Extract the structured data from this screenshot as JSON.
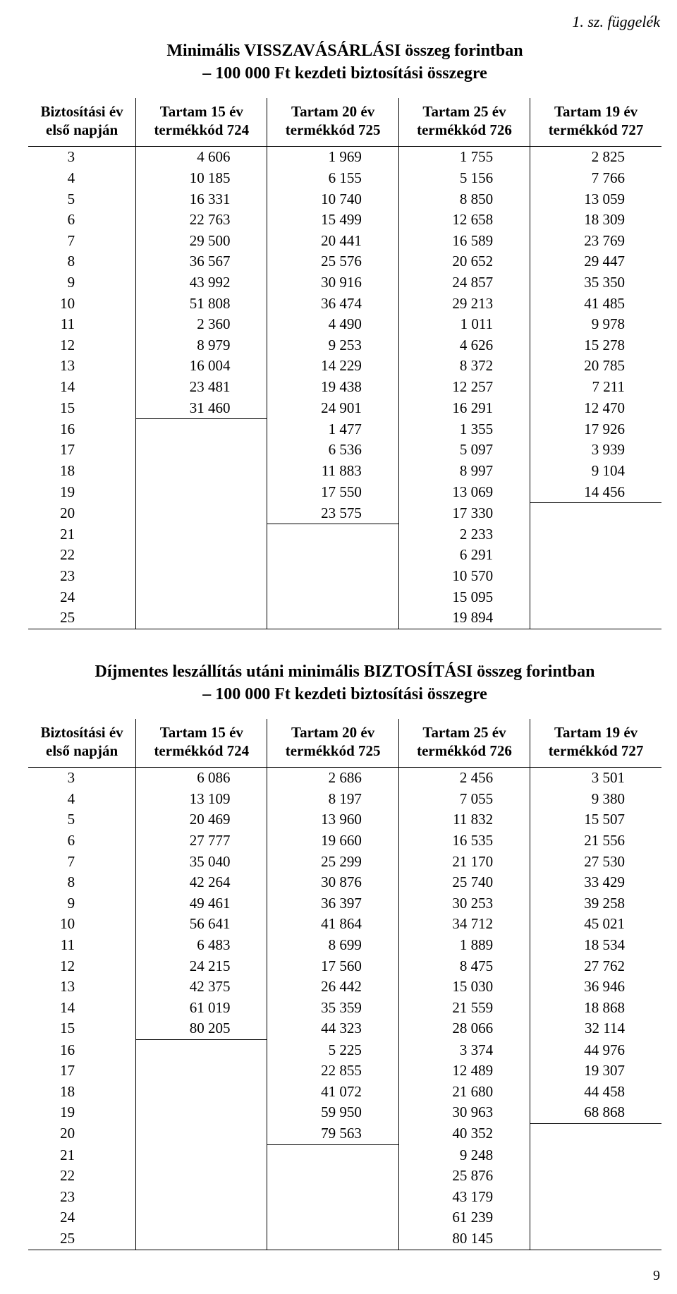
{
  "appendix_label": "1. sz. függelék",
  "page_number": "9",
  "tables": [
    {
      "title_line1": "Minimális VISSZAVÁSÁRLÁSI összeg forintban",
      "title_line2": "– 100 000 Ft kezdeti biztosítási összegre",
      "headers": [
        [
          "Biztosítási év",
          "első napján"
        ],
        [
          "Tartam 15 év",
          "termékkód 724"
        ],
        [
          "Tartam 20 év",
          "termékkód 725"
        ],
        [
          "Tartam 25 év",
          "termékkód 726"
        ],
        [
          "Tartam 19 év",
          "termékkód 727"
        ]
      ],
      "years": [
        3,
        4,
        5,
        6,
        7,
        8,
        9,
        10,
        11,
        12,
        13,
        14,
        15,
        16,
        17,
        18,
        19,
        20,
        21,
        22,
        23,
        24,
        25
      ],
      "col15": [
        "4 606",
        "10 185",
        "16 331",
        "22 763",
        "29 500",
        "36 567",
        "43 992",
        "51 808",
        "2 360",
        "8 979",
        "16 004",
        "23 481",
        "31 460"
      ],
      "col20": [
        "1 969",
        "6 155",
        "10 740",
        "15 499",
        "20 441",
        "25 576",
        "30 916",
        "36 474",
        "4 490",
        "9 253",
        "14 229",
        "19 438",
        "24 901",
        "1 477",
        "6 536",
        "11 883",
        "17 550",
        "23 575"
      ],
      "col25": [
        "1 755",
        "5 156",
        "8 850",
        "12 658",
        "16 589",
        "20 652",
        "24 857",
        "29 213",
        "1 011",
        "4 626",
        "8 372",
        "12 257",
        "16 291",
        "1 355",
        "5 097",
        "8 997",
        "13 069",
        "17 330",
        "2 233",
        "6 291",
        "10 570",
        "15 095",
        "19 894"
      ],
      "col19": [
        "2 825",
        "7 766",
        "13 059",
        "18 309",
        "23 769",
        "29 447",
        "35 350",
        "41 485",
        "9 978",
        "15 278",
        "20 785",
        "7 211",
        "12 470",
        "17 926",
        "3 939",
        "9 104",
        "14 456"
      ]
    },
    {
      "title_line1": "Díjmentes leszállítás utáni minimális BIZTOSÍTÁSI összeg forintban",
      "title_line2": "– 100 000 Ft kezdeti biztosítási összegre",
      "headers": [
        [
          "Biztosítási év",
          "első napján"
        ],
        [
          "Tartam 15 év",
          "termékkód 724"
        ],
        [
          "Tartam 20 év",
          "termékkód 725"
        ],
        [
          "Tartam 25 év",
          "termékkód 726"
        ],
        [
          "Tartam 19 év",
          "termékkód 727"
        ]
      ],
      "years": [
        3,
        4,
        5,
        6,
        7,
        8,
        9,
        10,
        11,
        12,
        13,
        14,
        15,
        16,
        17,
        18,
        19,
        20,
        21,
        22,
        23,
        24,
        25
      ],
      "col15": [
        "6 086",
        "13 109",
        "20 469",
        "27 777",
        "35 040",
        "42 264",
        "49 461",
        "56 641",
        "6 483",
        "24 215",
        "42 375",
        "61 019",
        "80 205"
      ],
      "col20": [
        "2 686",
        "8 197",
        "13 960",
        "19 660",
        "25 299",
        "30 876",
        "36 397",
        "41 864",
        "8 699",
        "17 560",
        "26 442",
        "35 359",
        "44 323",
        "5 225",
        "22 855",
        "41 072",
        "59 950",
        "79 563"
      ],
      "col25": [
        "2 456",
        "7 055",
        "11 832",
        "16 535",
        "21 170",
        "25 740",
        "30 253",
        "34 712",
        "1 889",
        "8 475",
        "15 030",
        "21 559",
        "28 066",
        "3 374",
        "12 489",
        "21 680",
        "30 963",
        "40 352",
        "9 248",
        "25 876",
        "43 179",
        "61 239",
        "80 145"
      ],
      "col19": [
        "3 501",
        "9 380",
        "15 507",
        "21 556",
        "27 530",
        "33 429",
        "39 258",
        "45 021",
        "18 534",
        "27 762",
        "36 946",
        "18 868",
        "32 114",
        "44 976",
        "19 307",
        "44 458",
        "68 868"
      ]
    }
  ]
}
